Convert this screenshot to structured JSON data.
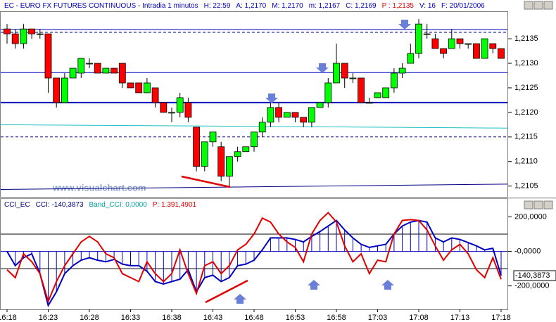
{
  "chart_data": [
    {
      "type": "candlestick",
      "header": [
        {
          "text": "EC - EURO FX FUTURES CONTINUOUS - Intradia 1 minutos",
          "color": "#0000c0"
        },
        {
          "text": "H: 22:59",
          "color": "#0000c0"
        },
        {
          "text": "A: 1,2170",
          "color": "#0000c0"
        },
        {
          "text": "M: 1,2170",
          "color": "#0000c0"
        },
        {
          "text": "m: 1,2167",
          "color": "#0000c0"
        },
        {
          "text": "C: 1,2169",
          "color": "#0000c0"
        },
        {
          "text": "P : 1,2135",
          "color": "#e00000"
        },
        {
          "text": "V: 16",
          "color": "#0000c0"
        },
        {
          "text": "F: 20/01/2006",
          "color": "#0000c0"
        }
      ],
      "watermark": "www.visualchart.com",
      "categories": [
        "16:18",
        null,
        null,
        null,
        null,
        "16:23",
        null,
        null,
        null,
        null,
        "16:28",
        null,
        null,
        null,
        null,
        "16:33",
        null,
        null,
        null,
        null,
        "16:38",
        null,
        null,
        null,
        null,
        "16:43",
        null,
        null,
        null,
        null,
        "16:48",
        null,
        null,
        null,
        null,
        "16:53",
        null,
        null,
        null,
        null,
        "16:58",
        null,
        null,
        null,
        null,
        "17:03",
        null,
        null,
        null,
        null,
        "17:08",
        null,
        null,
        null,
        null,
        "17:13",
        null,
        null,
        null,
        null,
        "17:18"
      ],
      "open": [
        1.2137,
        1.2136,
        1.2134,
        1.2137,
        1.2136,
        1.2136,
        1.2127,
        1.2122,
        1.2127,
        1.2128,
        1.213,
        1.213,
        1.2128,
        1.2129,
        1.213,
        1.2126,
        1.2126,
        1.2124,
        1.2125,
        1.2122,
        1.212,
        1.212,
        1.2122,
        1.2117,
        1.2109,
        1.2114,
        1.2113,
        1.2107,
        1.2111,
        1.2112,
        1.2113,
        1.2116,
        1.2118,
        1.2121,
        1.2119,
        1.212,
        1.2119,
        1.2118,
        1.2121,
        1.2122,
        1.2126,
        1.213,
        1.2127,
        1.2127,
        1.2122,
        1.2123,
        1.2123,
        1.2125,
        1.2128,
        1.213,
        1.2132,
        1.2136,
        1.2135,
        1.2133,
        1.2133,
        1.2135,
        1.2134,
        1.2134,
        1.2131,
        1.2134,
        1.2133
      ],
      "high": [
        1.2138,
        1.2137,
        1.2138,
        1.2137,
        1.2137,
        1.2136,
        1.2127,
        1.2128,
        1.2129,
        1.2131,
        1.2131,
        1.213,
        1.2129,
        1.2129,
        1.213,
        1.2126,
        1.2126,
        1.2127,
        1.2125,
        1.2122,
        1.2121,
        1.2124,
        1.2123,
        1.2117,
        1.2114,
        1.2116,
        1.2114,
        1.2111,
        1.2113,
        1.2113,
        1.2116,
        1.2119,
        1.2122,
        1.2122,
        1.212,
        1.212,
        1.2119,
        1.2121,
        1.2122,
        1.2127,
        1.2134,
        1.213,
        1.2128,
        1.2127,
        1.2123,
        1.2124,
        1.2125,
        1.2129,
        1.213,
        1.2134,
        1.2139,
        1.2138,
        1.2136,
        1.2133,
        1.2137,
        1.2135,
        1.2134,
        1.2134,
        1.2135,
        1.2134,
        1.2133
      ],
      "low": [
        1.2134,
        1.2133,
        1.2133,
        1.2135,
        1.2135,
        1.2124,
        1.2121,
        1.2122,
        1.2127,
        1.2127,
        1.2129,
        1.2128,
        1.2128,
        1.2128,
        1.2125,
        1.2125,
        1.2124,
        1.2124,
        1.2121,
        1.212,
        1.2118,
        1.2119,
        1.2118,
        1.2108,
        1.2108,
        1.2113,
        1.2106,
        1.2105,
        1.211,
        1.2112,
        1.2112,
        1.2115,
        1.2117,
        1.2118,
        1.2119,
        1.2118,
        1.2117,
        1.2117,
        1.2121,
        1.2121,
        1.2126,
        1.2125,
        1.2126,
        1.2122,
        1.2122,
        1.2123,
        1.2123,
        1.2124,
        1.2127,
        1.213,
        1.2131,
        1.2135,
        1.2133,
        1.2131,
        1.2133,
        1.2133,
        1.2133,
        1.2131,
        1.2131,
        1.2132,
        1.2131
      ],
      "close": [
        1.2136,
        1.2134,
        1.2137,
        1.2136,
        1.2136,
        1.2127,
        1.2122,
        1.2127,
        1.2129,
        1.2131,
        1.213,
        1.2128,
        1.2129,
        1.2128,
        1.2126,
        1.2125,
        1.2124,
        1.2126,
        1.2122,
        1.212,
        1.212,
        1.2123,
        1.2119,
        1.2109,
        1.2114,
        1.2116,
        1.2107,
        1.2111,
        1.2112,
        1.2113,
        1.2116,
        1.2118,
        1.2121,
        1.2119,
        1.212,
        1.2119,
        1.2118,
        1.2121,
        1.2122,
        1.2126,
        1.213,
        1.2127,
        1.2127,
        1.2122,
        1.2122,
        1.2124,
        1.2125,
        1.2128,
        1.2129,
        1.2132,
        1.2138,
        1.2136,
        1.2133,
        1.2132,
        1.2135,
        1.2134,
        1.2134,
        1.2131,
        1.2135,
        1.2133,
        1.2131
      ],
      "up_color": "#00ff00",
      "down_color": "#ff0000",
      "lines": [
        {
          "values": [
            1.21369,
            1.21369
          ],
          "color": "#0000c0",
          "width": 1,
          "dash": false
        },
        {
          "values": [
            1.21363,
            1.21363
          ],
          "color": "#000080",
          "width": 1,
          "dash": true
        },
        {
          "values": [
            1.21281,
            1.21281
          ],
          "color": "#0000c0",
          "width": 1,
          "dash": false
        },
        {
          "values": [
            1.2122,
            1.2122
          ],
          "color": "#0000c0",
          "width": 2,
          "dash": false
        },
        {
          "values": [
            1.21175,
            1.21168
          ],
          "color": "#20c0c0",
          "width": 1,
          "dash": false
        },
        {
          "values": [
            1.2115,
            1.2115
          ],
          "color": "#000080",
          "width": 1,
          "dash": true
        },
        {
          "values": [
            1.21043,
            1.21054
          ],
          "color": "#000080",
          "width": 1,
          "dash": false
        }
      ],
      "ylim": [
        1.21028,
        1.21406
      ],
      "yticks": [
        {
          "value": 1.2105,
          "label": "1,2105"
        },
        {
          "value": 1.211,
          "label": "1,2110"
        },
        {
          "value": 1.2115,
          "label": "1,2115"
        },
        {
          "value": 1.212,
          "label": "1,2120"
        },
        {
          "value": 1.2125,
          "label": "1,2125"
        },
        {
          "value": 1.213,
          "label": "1,2130"
        },
        {
          "value": 1.2135,
          "label": "1,2135"
        }
      ]
    },
    {
      "type": "line",
      "header": [
        {
          "text": "CCI_EC",
          "color": "#000080"
        },
        {
          "text": "CCI: -140,3873",
          "color": "#000080"
        },
        {
          "text": "Band_CCI: 0,0000",
          "color": "#00a0a0"
        },
        {
          "text": "P: 1.391,4901",
          "color": "#e00000"
        }
      ],
      "series": [
        {
          "color": "#0000c0",
          "bars": true,
          "values": [
            0,
            -83,
            -37,
            -14,
            -129,
            -313,
            -234,
            -129,
            -83,
            -51,
            -37,
            -51,
            -60,
            -46,
            -74,
            -83,
            -83,
            -115,
            -175,
            -189,
            -175,
            -161,
            -106,
            -234,
            -152,
            -138,
            -175,
            -152,
            -83,
            -74,
            -51,
            9,
            78,
            78,
            78,
            69,
            55,
            87,
            115,
            147,
            179,
            124,
            78,
            41,
            23,
            32,
            41,
            101,
            147,
            170,
            179,
            170,
            78,
            55,
            78,
            69,
            51,
            32,
            9,
            18,
            -140.3873
          ]
        },
        {
          "color": "#e00000",
          "bars": false,
          "values": [
            -106,
            -152,
            -14,
            -60,
            -129,
            -290,
            -175,
            -83,
            -14,
            55,
            87,
            55,
            -14,
            -37,
            -129,
            -152,
            -175,
            -60,
            -129,
            -175,
            -129,
            9,
            -129,
            -244,
            -83,
            -60,
            -129,
            -83,
            9,
            41,
            101,
            193,
            170,
            101,
            55,
            23,
            -60,
            101,
            179,
            225,
            170,
            32,
            -60,
            -14,
            -129,
            -51,
            -60,
            101,
            179,
            184,
            179,
            124,
            32,
            -51,
            9,
            41,
            -14,
            -106,
            -152,
            -37,
            -161
          ]
        }
      ],
      "levels": [
        {
          "value": 100,
          "color": "#000000"
        },
        {
          "value": -100,
          "color": "#000000"
        },
        {
          "value": 0,
          "color": "#0000c0"
        }
      ],
      "current_label": {
        "value": -140.3873,
        "label": "-140,3873"
      },
      "ylim": [
        -336,
        308
      ],
      "yticks": [
        {
          "value": 200,
          "label": "200,0000"
        },
        {
          "value": 0,
          "label": "-0,0000"
        },
        {
          "value": -200,
          "label": "-200,0000"
        }
      ]
    }
  ]
}
